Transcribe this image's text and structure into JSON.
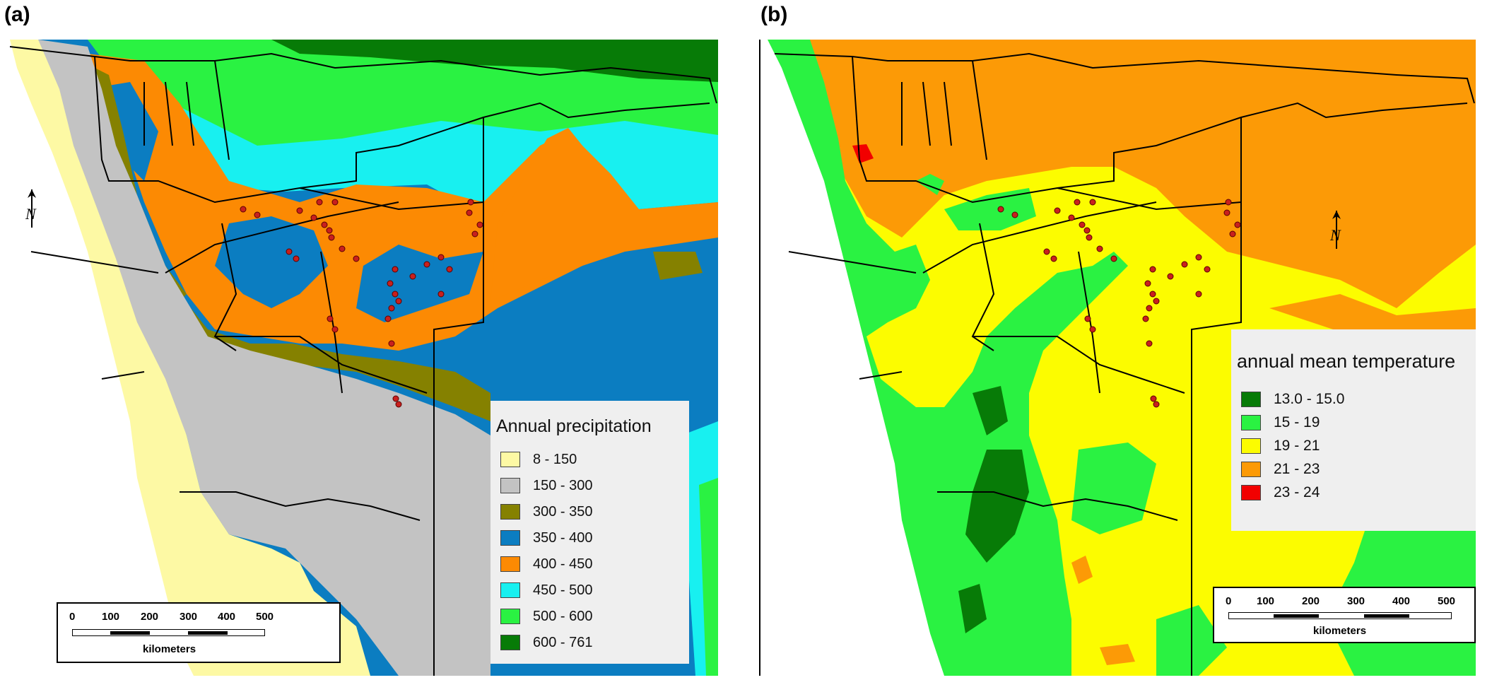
{
  "panels": [
    {
      "label": "(a)",
      "legend": {
        "title": "Annual precipitation",
        "items": [
          {
            "label": "8 - 150",
            "color": "#fdf9a4"
          },
          {
            "label": "150 - 300",
            "color": "#c3c3c3"
          },
          {
            "label": "300 - 350",
            "color": "#858100"
          },
          {
            "label": "350 - 400",
            "color": "#0b7dc1"
          },
          {
            "label": "400 - 450",
            "color": "#fc8a03"
          },
          {
            "label": "450 - 500",
            "color": "#18f0f0"
          },
          {
            "label": "500 - 600",
            "color": "#2af242"
          },
          {
            "label": "600 - 761",
            "color": "#077b07"
          }
        ]
      },
      "scalebar": {
        "ticks": [
          "0",
          "100",
          "200",
          "300",
          "400",
          "500"
        ],
        "unit": "kilometers"
      },
      "north_arrow": "north-arrow-icon"
    },
    {
      "label": "(b)",
      "legend": {
        "title": "annual mean temperature",
        "items": [
          {
            "label": "13.0 - 15.0",
            "color": "#077b07"
          },
          {
            "label": "15 - 19",
            "color": "#2af242"
          },
          {
            "label": "19 - 21",
            "color": "#fcfc00"
          },
          {
            "label": "21 - 23",
            "color": "#fc9a06"
          },
          {
            "label": "23 - 24",
            "color": "#f20000"
          }
        ]
      },
      "scalebar": {
        "ticks": [
          "0",
          "100",
          "200",
          "300",
          "400",
          "500"
        ],
        "unit": "kilometers"
      },
      "north_arrow": "north-arrow-icon"
    }
  ],
  "colors": {
    "occurrence_point": "#c8201e",
    "boundary": "#000000"
  }
}
